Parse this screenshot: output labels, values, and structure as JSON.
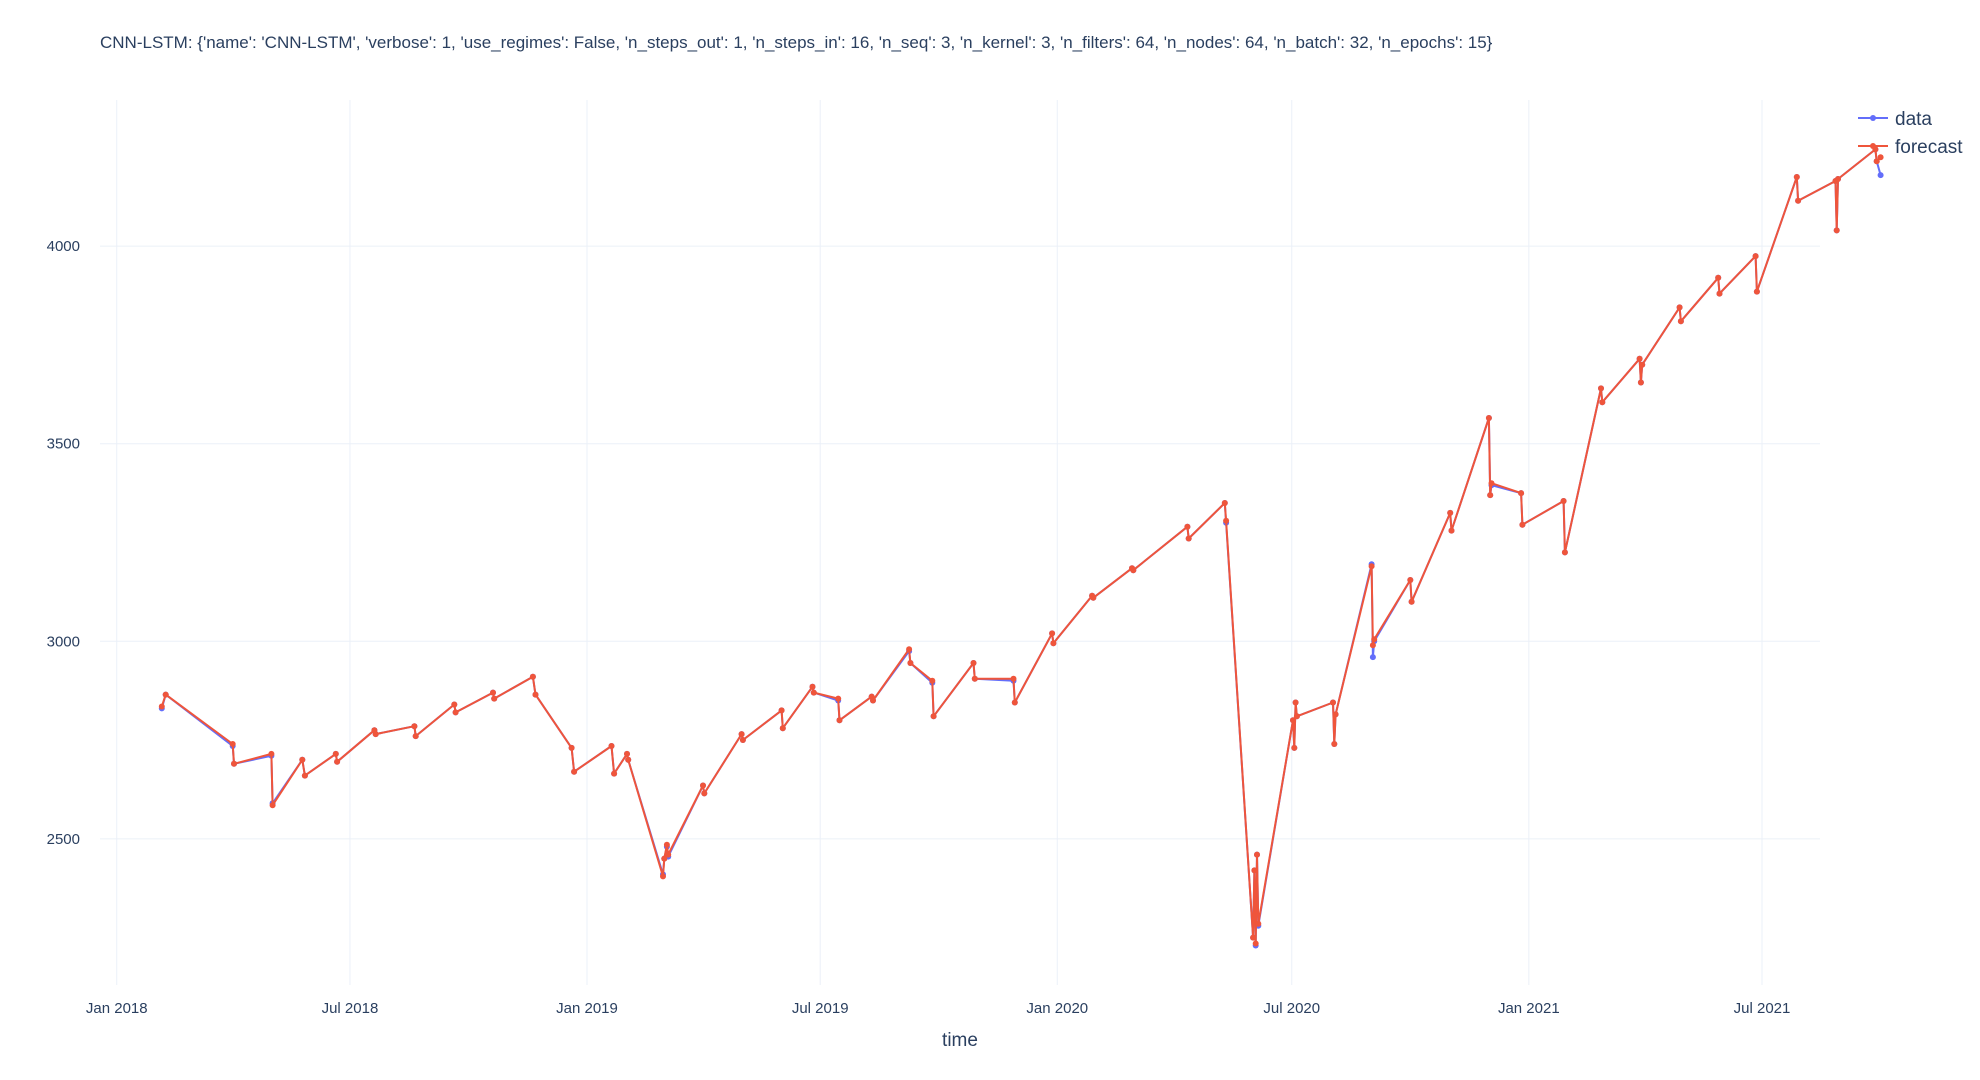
{
  "chart_data": {
    "type": "line",
    "title": "CNN-LSTM: {'name': 'CNN-LSTM', 'verbose': 1, 'use_regimes': False, 'n_steps_out': 1, 'n_steps_in': 16, 'n_seq': 3, 'n_kernel': 3, 'n_filters': 64, 'n_nodes': 64, 'n_batch': 32, 'n_epochs': 15}",
    "xlabel": "time",
    "ylabel": "",
    "xlim": [
      "2017-12-19",
      "2021-08-15"
    ],
    "ylim": [
      2130,
      4370
    ],
    "x_ticks": [
      {
        "date": "2018-01-01",
        "label": "Jan 2018"
      },
      {
        "date": "2018-07-01",
        "label": "Jul 2018"
      },
      {
        "date": "2019-01-01",
        "label": "Jan 2019"
      },
      {
        "date": "2019-07-01",
        "label": "Jul 2019"
      },
      {
        "date": "2020-01-01",
        "label": "Jan 2020"
      },
      {
        "date": "2020-07-01",
        "label": "Jul 2020"
      },
      {
        "date": "2021-01-01",
        "label": "Jan 2021"
      },
      {
        "date": "2021-07-01",
        "label": "Jul 2021"
      }
    ],
    "y_ticks": [
      2500,
      3000,
      3500,
      4000
    ],
    "grid": true,
    "legend_position": "top-right",
    "series": [
      {
        "name": "data",
        "color": "#636efa",
        "points": [
          [
            "2018-02-05",
            2830
          ],
          [
            "2018-02-08",
            2865
          ],
          [
            "2018-04-01",
            2735
          ],
          [
            "2018-04-02",
            2690
          ],
          [
            "2018-05-01",
            2710
          ],
          [
            "2018-05-02",
            2590
          ],
          [
            "2018-05-25",
            2700
          ],
          [
            "2018-05-27",
            2660
          ],
          [
            "2018-06-20",
            2715
          ],
          [
            "2018-06-21",
            2695
          ],
          [
            "2018-07-20",
            2775
          ],
          [
            "2018-07-21",
            2765
          ],
          [
            "2018-08-20",
            2785
          ],
          [
            "2018-08-21",
            2760
          ],
          [
            "2018-09-20",
            2840
          ],
          [
            "2018-09-21",
            2820
          ],
          [
            "2018-10-20",
            2870
          ],
          [
            "2018-10-21",
            2855
          ],
          [
            "2018-11-20",
            2910
          ],
          [
            "2018-11-22",
            2865
          ],
          [
            "2018-12-20",
            2730
          ],
          [
            "2018-12-22",
            2670
          ],
          [
            "2019-01-20",
            2735
          ],
          [
            "2019-01-22",
            2665
          ],
          [
            "2019-02-01",
            2715
          ],
          [
            "2019-02-02",
            2700
          ],
          [
            "2019-03-01",
            2410
          ],
          [
            "2019-03-02",
            2450
          ],
          [
            "2019-03-04",
            2480
          ],
          [
            "2019-03-05",
            2455
          ],
          [
            "2019-04-01",
            2635
          ],
          [
            "2019-04-02",
            2615
          ],
          [
            "2019-05-01",
            2765
          ],
          [
            "2019-05-02",
            2750
          ],
          [
            "2019-06-01",
            2825
          ],
          [
            "2019-06-02",
            2780
          ],
          [
            "2019-06-25",
            2885
          ],
          [
            "2019-06-26",
            2870
          ],
          [
            "2019-07-15",
            2850
          ],
          [
            "2019-07-16",
            2800
          ],
          [
            "2019-08-10",
            2860
          ],
          [
            "2019-08-11",
            2850
          ],
          [
            "2019-09-08",
            2975
          ],
          [
            "2019-09-09",
            2945
          ],
          [
            "2019-09-26",
            2895
          ],
          [
            "2019-09-27",
            2810
          ],
          [
            "2019-10-28",
            2945
          ],
          [
            "2019-10-29",
            2905
          ],
          [
            "2019-11-28",
            2900
          ],
          [
            "2019-11-29",
            2845
          ],
          [
            "2019-12-28",
            3020
          ],
          [
            "2019-12-29",
            2995
          ],
          [
            "2020-01-28",
            3115
          ],
          [
            "2020-01-29",
            3110
          ],
          [
            "2020-02-28",
            3185
          ],
          [
            "2020-02-29",
            3180
          ],
          [
            "2020-04-11",
            3290
          ],
          [
            "2020-04-12",
            3260
          ],
          [
            "2020-05-10",
            3350
          ],
          [
            "2020-05-11",
            3300
          ],
          [
            "2020-06-01",
            2250
          ],
          [
            "2020-06-02",
            2420
          ],
          [
            "2020-06-03",
            2230
          ],
          [
            "2020-06-04",
            2460
          ],
          [
            "2020-06-05",
            2280
          ],
          [
            "2020-07-02",
            2800
          ],
          [
            "2020-07-03",
            2730
          ],
          [
            "2020-07-04",
            2845
          ],
          [
            "2020-07-05",
            2810
          ],
          [
            "2020-08-02",
            2845
          ],
          [
            "2020-08-03",
            2740
          ],
          [
            "2020-08-04",
            2815
          ],
          [
            "2020-09-01",
            3195
          ],
          [
            "2020-09-02",
            2960
          ],
          [
            "2020-09-03",
            3000
          ],
          [
            "2020-10-01",
            3155
          ],
          [
            "2020-10-02",
            3100
          ],
          [
            "2020-11-01",
            3325
          ],
          [
            "2020-11-02",
            3280
          ],
          [
            "2020-12-01",
            3565
          ],
          [
            "2020-12-02",
            3370
          ],
          [
            "2020-12-03",
            3395
          ],
          [
            "2020-12-26",
            3375
          ],
          [
            "2020-12-27",
            3295
          ],
          [
            "2021-01-28",
            3355
          ],
          [
            "2021-01-29",
            3225
          ],
          [
            "2021-02-26",
            3640
          ],
          [
            "2021-02-27",
            3605
          ],
          [
            "2021-03-28",
            3715
          ],
          [
            "2021-03-29",
            3655
          ],
          [
            "2021-03-30",
            3700
          ],
          [
            "2021-04-28",
            3845
          ],
          [
            "2021-04-29",
            3810
          ],
          [
            "2021-05-28",
            3920
          ],
          [
            "2021-05-29",
            3880
          ],
          [
            "2021-06-26",
            3975
          ],
          [
            "2021-06-27",
            3885
          ],
          [
            "2021-07-28",
            4175
          ],
          [
            "2021-07-29",
            4115
          ],
          [
            "2021-08-27",
            4165
          ],
          [
            "2021-08-28",
            4040
          ],
          [
            "2021-08-29",
            4170
          ],
          [
            "2021-09-27",
            4245
          ],
          [
            "2021-09-28",
            4215
          ],
          [
            "2021-10-01",
            4180
          ]
        ]
      },
      {
        "name": "forecast",
        "color": "#ef553b",
        "points": [
          [
            "2018-02-05",
            2835
          ],
          [
            "2018-02-08",
            2865
          ],
          [
            "2018-04-01",
            2740
          ],
          [
            "2018-04-02",
            2690
          ],
          [
            "2018-05-01",
            2715
          ],
          [
            "2018-05-02",
            2585
          ],
          [
            "2018-05-25",
            2700
          ],
          [
            "2018-05-27",
            2660
          ],
          [
            "2018-06-20",
            2715
          ],
          [
            "2018-06-21",
            2695
          ],
          [
            "2018-07-20",
            2775
          ],
          [
            "2018-07-21",
            2765
          ],
          [
            "2018-08-20",
            2785
          ],
          [
            "2018-08-21",
            2760
          ],
          [
            "2018-09-20",
            2840
          ],
          [
            "2018-09-21",
            2820
          ],
          [
            "2018-10-20",
            2870
          ],
          [
            "2018-10-21",
            2855
          ],
          [
            "2018-11-20",
            2910
          ],
          [
            "2018-11-22",
            2865
          ],
          [
            "2018-12-20",
            2730
          ],
          [
            "2018-12-22",
            2670
          ],
          [
            "2019-01-20",
            2735
          ],
          [
            "2019-01-22",
            2665
          ],
          [
            "2019-02-01",
            2715
          ],
          [
            "2019-02-02",
            2700
          ],
          [
            "2019-03-01",
            2405
          ],
          [
            "2019-03-02",
            2450
          ],
          [
            "2019-03-04",
            2485
          ],
          [
            "2019-03-05",
            2460
          ],
          [
            "2019-04-01",
            2635
          ],
          [
            "2019-04-02",
            2615
          ],
          [
            "2019-05-01",
            2765
          ],
          [
            "2019-05-02",
            2750
          ],
          [
            "2019-06-01",
            2825
          ],
          [
            "2019-06-02",
            2780
          ],
          [
            "2019-06-25",
            2885
          ],
          [
            "2019-06-26",
            2870
          ],
          [
            "2019-07-15",
            2855
          ],
          [
            "2019-07-16",
            2800
          ],
          [
            "2019-08-10",
            2860
          ],
          [
            "2019-08-11",
            2850
          ],
          [
            "2019-09-08",
            2980
          ],
          [
            "2019-09-09",
            2945
          ],
          [
            "2019-09-26",
            2900
          ],
          [
            "2019-09-27",
            2810
          ],
          [
            "2019-10-28",
            2945
          ],
          [
            "2019-10-29",
            2905
          ],
          [
            "2019-11-28",
            2905
          ],
          [
            "2019-11-29",
            2845
          ],
          [
            "2019-12-28",
            3020
          ],
          [
            "2019-12-29",
            2995
          ],
          [
            "2020-01-28",
            3115
          ],
          [
            "2020-01-29",
            3110
          ],
          [
            "2020-02-28",
            3185
          ],
          [
            "2020-02-29",
            3180
          ],
          [
            "2020-04-11",
            3290
          ],
          [
            "2020-04-12",
            3260
          ],
          [
            "2020-05-10",
            3350
          ],
          [
            "2020-05-11",
            3305
          ],
          [
            "2020-06-01",
            2250
          ],
          [
            "2020-06-02",
            2420
          ],
          [
            "2020-06-03",
            2235
          ],
          [
            "2020-06-04",
            2460
          ],
          [
            "2020-06-05",
            2285
          ],
          [
            "2020-07-02",
            2800
          ],
          [
            "2020-07-03",
            2730
          ],
          [
            "2020-07-04",
            2845
          ],
          [
            "2020-07-05",
            2810
          ],
          [
            "2020-08-02",
            2845
          ],
          [
            "2020-08-03",
            2740
          ],
          [
            "2020-08-04",
            2815
          ],
          [
            "2020-09-01",
            3190
          ],
          [
            "2020-09-02",
            2990
          ],
          [
            "2020-09-03",
            3005
          ],
          [
            "2020-10-01",
            3155
          ],
          [
            "2020-10-02",
            3100
          ],
          [
            "2020-11-01",
            3325
          ],
          [
            "2020-11-02",
            3280
          ],
          [
            "2020-12-01",
            3565
          ],
          [
            "2020-12-02",
            3370
          ],
          [
            "2020-12-03",
            3400
          ],
          [
            "2020-12-26",
            3375
          ],
          [
            "2020-12-27",
            3295
          ],
          [
            "2021-01-28",
            3355
          ],
          [
            "2021-01-29",
            3225
          ],
          [
            "2021-02-26",
            3640
          ],
          [
            "2021-02-27",
            3605
          ],
          [
            "2021-03-28",
            3715
          ],
          [
            "2021-03-29",
            3655
          ],
          [
            "2021-03-30",
            3700
          ],
          [
            "2021-04-28",
            3845
          ],
          [
            "2021-04-29",
            3810
          ],
          [
            "2021-05-28",
            3920
          ],
          [
            "2021-05-29",
            3880
          ],
          [
            "2021-06-26",
            3975
          ],
          [
            "2021-06-27",
            3885
          ],
          [
            "2021-07-28",
            4175
          ],
          [
            "2021-07-29",
            4115
          ],
          [
            "2021-08-27",
            4165
          ],
          [
            "2021-08-28",
            4040
          ],
          [
            "2021-08-29",
            4170
          ],
          [
            "2021-09-27",
            4245
          ],
          [
            "2021-09-28",
            4215
          ],
          [
            "2021-10-01",
            4225
          ]
        ]
      }
    ]
  }
}
